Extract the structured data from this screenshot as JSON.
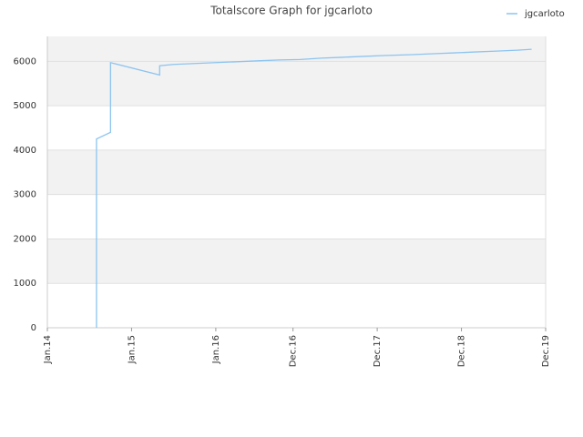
{
  "chart_data": {
    "type": "line",
    "title": "Totalscore Graph for jgcarloto",
    "x": [
      "2014-08",
      "2014-08",
      "2014-08",
      "2014-10",
      "2014-10",
      "2014-10",
      "2015-05",
      "2015-05",
      "2015-07",
      "2015-10",
      "2016-01",
      "2016-04",
      "2016-07",
      "2016-10",
      "2017-01",
      "2017-04",
      "2017-07",
      "2017-10",
      "2018-01",
      "2018-05",
      "2018-08",
      "2018-11",
      "2019-02",
      "2019-05",
      "2019-08",
      "2019-10"
    ],
    "series": [
      {
        "name": "jgcarloto",
        "color": "#8cc4f0",
        "values": [
          0,
          3100,
          4250,
          4400,
          4750,
          5970,
          5690,
          5900,
          5930,
          5950,
          5970,
          5990,
          6010,
          6030,
          6040,
          6070,
          6090,
          6110,
          6130,
          6150,
          6170,
          6190,
          6210,
          6230,
          6250,
          6270
        ]
      }
    ],
    "xlim": [
      "2014-01",
      "2019-12"
    ],
    "xticks": [
      {
        "value": "2014-01",
        "label": "Jan.14"
      },
      {
        "value": "2015-01",
        "label": "Jan.15"
      },
      {
        "value": "2016-01",
        "label": "Jan.16"
      },
      {
        "value": "2016-12",
        "label": "Dec.16"
      },
      {
        "value": "2017-12",
        "label": "Dec.17"
      },
      {
        "value": "2018-12",
        "label": "Dec.18"
      },
      {
        "value": "2019-12",
        "label": "Dec.19"
      }
    ],
    "ylim": [
      0,
      6560
    ],
    "yticks": [
      0,
      1000,
      2000,
      3000,
      4000,
      5000,
      6000
    ],
    "grid": true,
    "legend": "top-right"
  }
}
